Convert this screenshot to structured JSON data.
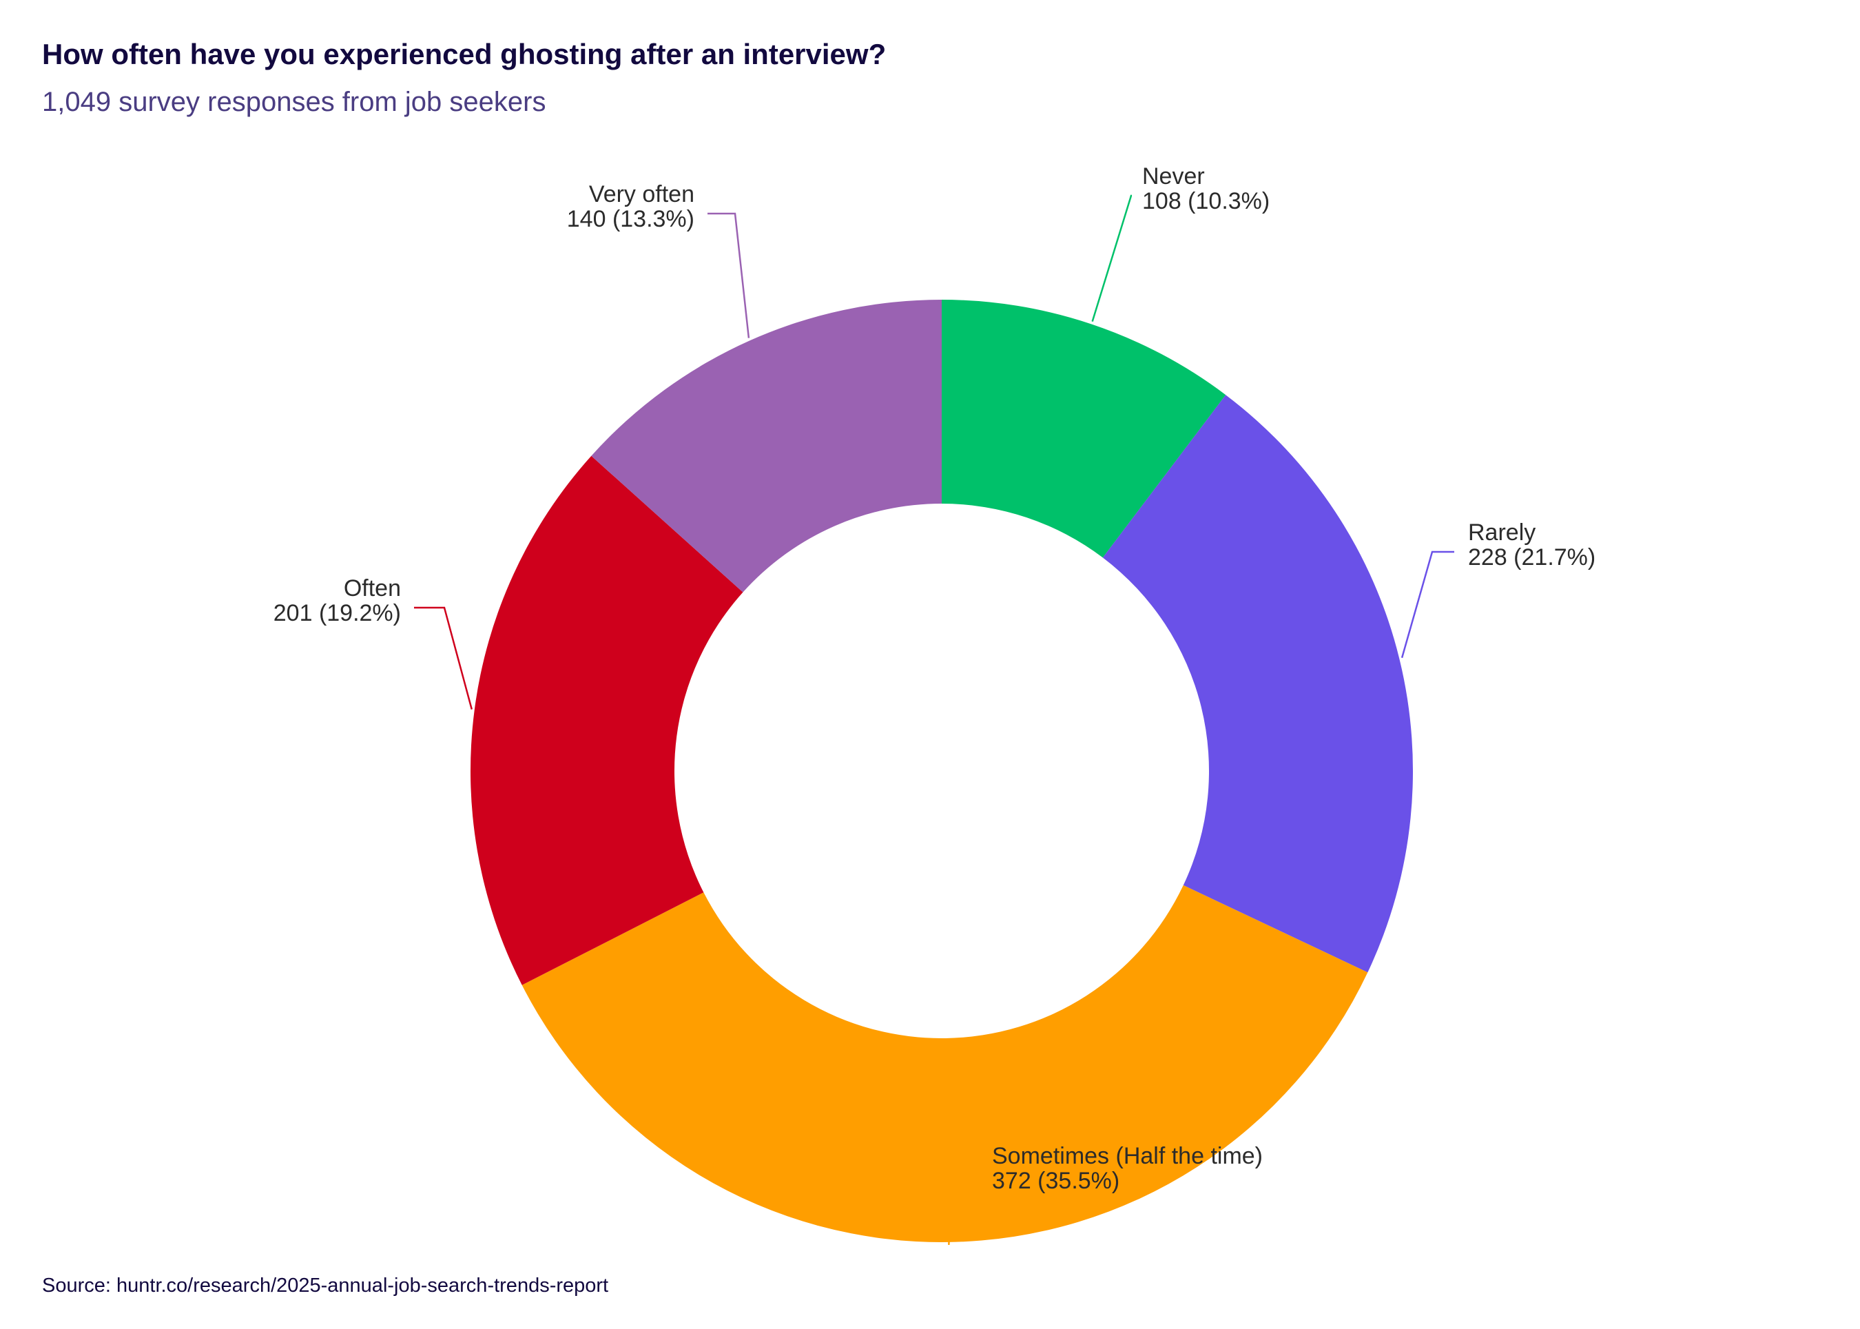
{
  "title": "How often have you experienced ghosting after an interview?",
  "subtitle": "1,049 survey responses from job seekers",
  "source": "Source: huntr.co/research/2025-annual-job-search-trends-report",
  "chart_data": {
    "type": "pie",
    "donut": true,
    "title": "How often have you experienced ghosting after an interview?",
    "subtitle": "1,049 survey responses from job seekers",
    "total": 1049,
    "slices": [
      {
        "label": "Never",
        "value": 108,
        "percent": 10.3,
        "value_text": "108 (10.3%)",
        "color": "#00c16a"
      },
      {
        "label": "Rarely",
        "value": 228,
        "percent": 21.7,
        "value_text": "228 (21.7%)",
        "color": "#6a51e8"
      },
      {
        "label": "Sometimes (Half the time)",
        "value": 372,
        "percent": 35.5,
        "value_text": "372 (35.5%)",
        "color": "#ff9e00"
      },
      {
        "label": "Often",
        "value": 201,
        "percent": 19.2,
        "value_text": "201 (19.2%)",
        "color": "#cf001c"
      },
      {
        "label": "Very often",
        "value": 140,
        "percent": 13.3,
        "value_text": "140 (13.3%)",
        "color": "#9a62b2"
      }
    ],
    "legend": "none",
    "source": "Source: huntr.co/research/2025-annual-job-search-trends-report"
  }
}
